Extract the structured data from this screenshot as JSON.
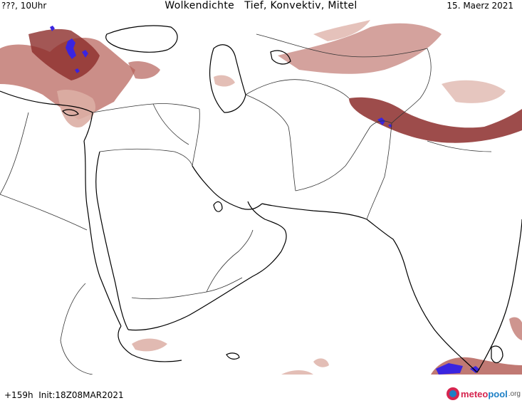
{
  "header": {
    "left": "???, 10Uhr",
    "title": "Wolkendichte   Tief, Konvektiv, Mittel",
    "date": "15. Maerz 2021"
  },
  "footer": {
    "run_info": "+159h  Init:18Z08MAR2021"
  },
  "logo": {
    "brand_meteo": "meteo",
    "brand_pool": "pool",
    "brand_tld": ".org"
  },
  "colors": {
    "cloud_low": "#dcaea4",
    "cloud_mid": "#b5615a",
    "cloud_high": "#8c2d2b",
    "cloud_dense": "#3a24e0",
    "coastline": "#000000",
    "border": "#333333"
  }
}
